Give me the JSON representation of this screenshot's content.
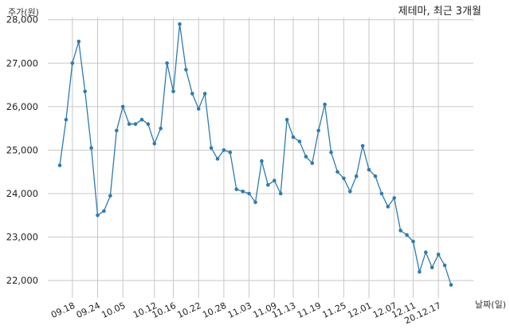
{
  "chart_data": {
    "type": "line",
    "title": "제테마, 최근 3개월",
    "xlabel": "날짜(일)",
    "ylabel": "주가(원)",
    "ylim": [
      21600,
      28050
    ],
    "yticks": [
      22000,
      23000,
      24000,
      25000,
      26000,
      27000,
      28000
    ],
    "ytick_labels": [
      "22,000",
      "23,000",
      "24,000",
      "25,000",
      "26,000",
      "27,000",
      "28,000"
    ],
    "grid": true,
    "xtick_labels": [
      "09.18",
      "09.24",
      "10.05",
      "10.12",
      "10.16",
      "10.22",
      "10.28",
      "11.03",
      "11.09",
      "11.13",
      "11.19",
      "11.25",
      "12.01",
      "12.07",
      "12.11",
      "20.12.17"
    ],
    "xtick_positions": [
      2,
      6,
      10,
      15,
      18,
      22,
      26,
      30,
      34,
      37,
      41,
      45,
      49,
      53,
      56,
      60
    ],
    "series": [
      {
        "name": "",
        "color": "#2e7bb0",
        "values": [
          24650,
          25700,
          27000,
          27500,
          26350,
          25050,
          23500,
          23600,
          23950,
          25450,
          26000,
          25600,
          25600,
          25700,
          25600,
          25150,
          25500,
          27000,
          26350,
          27900,
          26850,
          26300,
          25950,
          26300,
          25050,
          24800,
          25000,
          24950,
          24100,
          24050,
          24000,
          23800,
          24750,
          24200,
          24300,
          24000,
          25700,
          25300,
          25200,
          24850,
          24700,
          25450,
          26050,
          24950,
          24500,
          24350,
          24050,
          24400,
          25100,
          24550,
          24400,
          24000,
          23700,
          23900,
          23150,
          23050,
          22900,
          22200,
          22650,
          22300,
          22600,
          22350,
          21900
        ]
      }
    ]
  }
}
